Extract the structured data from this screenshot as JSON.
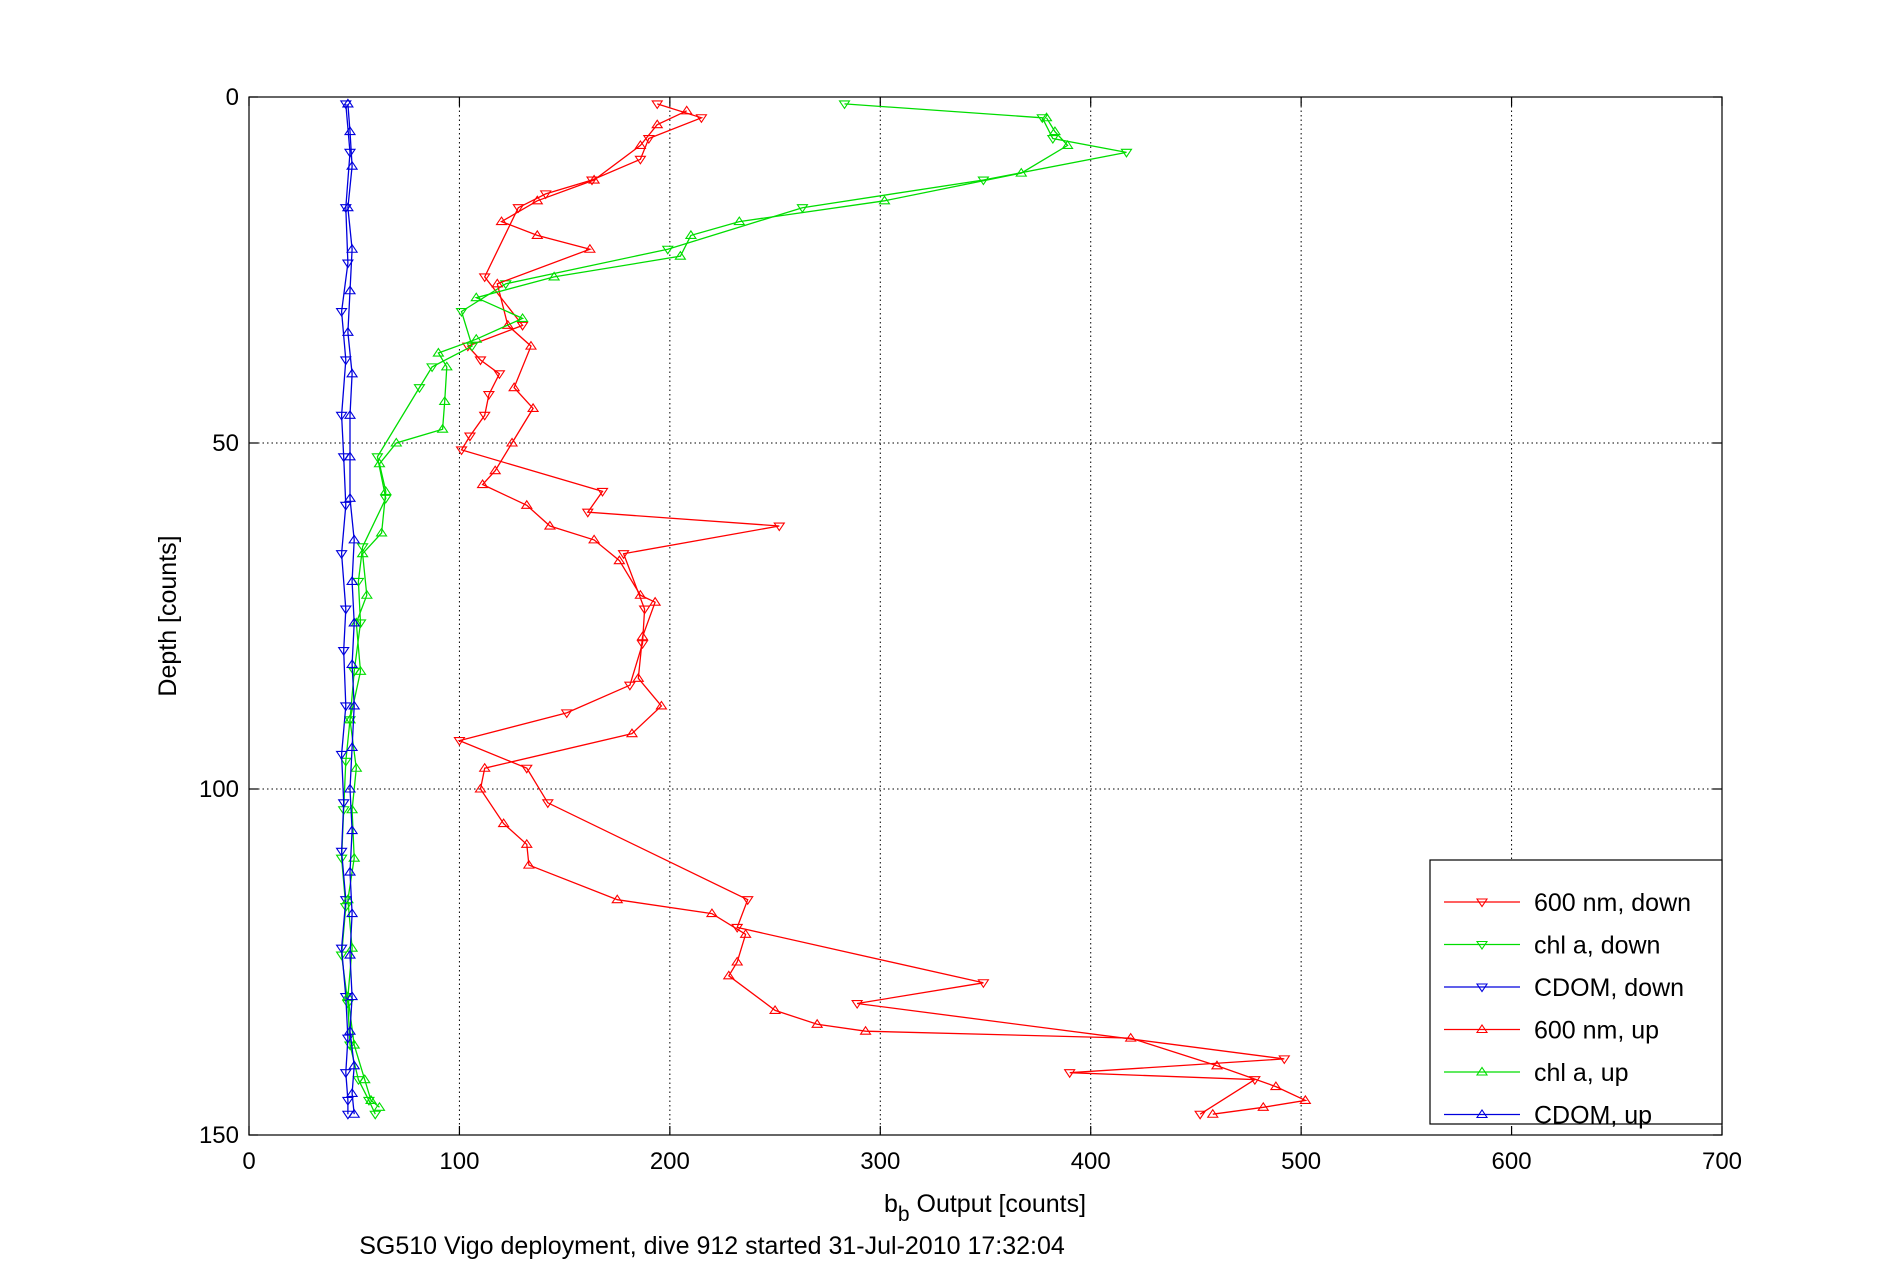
{
  "chart_data": {
    "type": "line",
    "xlabel": {
      "main": "b",
      "sub": "b",
      "rest": " Output [counts]"
    },
    "ylabel": "Depth [counts]",
    "caption": "SG510 Vigo deployment, dive 912 started 31-Jul-2010 17:32:04",
    "xlim": [
      0,
      700
    ],
    "ylim": [
      0,
      150
    ],
    "y_reversed": true,
    "xticks": [
      0,
      100,
      200,
      300,
      400,
      500,
      600,
      700
    ],
    "yticks": [
      0,
      50,
      100,
      150
    ],
    "grid": true,
    "legend_position": "bottom-right",
    "series": [
      {
        "name": "600 nm, down",
        "color": "#ff0000",
        "marker": "triangle-down",
        "points": [
          [
            194,
            1
          ],
          [
            215,
            3
          ],
          [
            190,
            6
          ],
          [
            186,
            9
          ],
          [
            163,
            12
          ],
          [
            141,
            14
          ],
          [
            128,
            16
          ],
          [
            112,
            26
          ],
          [
            130,
            33
          ],
          [
            104,
            36
          ],
          [
            110,
            38
          ],
          [
            119,
            40
          ],
          [
            114,
            43
          ],
          [
            112,
            46
          ],
          [
            105,
            49
          ],
          [
            101,
            51
          ],
          [
            168,
            57
          ],
          [
            161,
            60
          ],
          [
            252,
            62
          ],
          [
            178,
            66
          ],
          [
            188,
            74
          ],
          [
            187,
            79
          ],
          [
            181,
            85
          ],
          [
            151,
            89
          ],
          [
            100,
            93
          ],
          [
            132,
            97
          ],
          [
            142,
            102
          ],
          [
            237,
            116
          ],
          [
            232,
            120
          ],
          [
            349,
            128
          ],
          [
            289,
            131
          ],
          [
            492,
            139
          ],
          [
            390,
            141
          ],
          [
            478,
            142
          ],
          [
            452,
            147
          ]
        ]
      },
      {
        "name": "chl a, down",
        "color": "#00dd00",
        "marker": "triangle-down",
        "points": [
          [
            283,
            1
          ],
          [
            377,
            3
          ],
          [
            382,
            6
          ],
          [
            417,
            8
          ],
          [
            349,
            12
          ],
          [
            263,
            16
          ],
          [
            199,
            22
          ],
          [
            122,
            27
          ],
          [
            101,
            31
          ],
          [
            106,
            36
          ],
          [
            87,
            39
          ],
          [
            81,
            42
          ],
          [
            61,
            52
          ],
          [
            65,
            58
          ],
          [
            54,
            65
          ],
          [
            52,
            70
          ],
          [
            53,
            76
          ],
          [
            50,
            83
          ],
          [
            48,
            90
          ],
          [
            46,
            96
          ],
          [
            45,
            103
          ],
          [
            44,
            110
          ],
          [
            46,
            117
          ],
          [
            44,
            124
          ],
          [
            47,
            131
          ],
          [
            48,
            137
          ],
          [
            52,
            142
          ],
          [
            57,
            145
          ],
          [
            60,
            147
          ]
        ]
      },
      {
        "name": "CDOM, down",
        "color": "#0000dd",
        "marker": "triangle-down",
        "points": [
          [
            46,
            1
          ],
          [
            48,
            8
          ],
          [
            46,
            16
          ],
          [
            47,
            24
          ],
          [
            44,
            31
          ],
          [
            46,
            38
          ],
          [
            44,
            46
          ],
          [
            45,
            52
          ],
          [
            46,
            59
          ],
          [
            44,
            66
          ],
          [
            46,
            74
          ],
          [
            45,
            80
          ],
          [
            46,
            88
          ],
          [
            44,
            95
          ],
          [
            45,
            102
          ],
          [
            44,
            109
          ],
          [
            46,
            116
          ],
          [
            44,
            123
          ],
          [
            46,
            130
          ],
          [
            47,
            136
          ],
          [
            46,
            141
          ],
          [
            47,
            145
          ],
          [
            47,
            147
          ]
        ]
      },
      {
        "name": "600 nm, up",
        "color": "#ff0000",
        "marker": "triangle-up",
        "points": [
          [
            458,
            147
          ],
          [
            482,
            146
          ],
          [
            502,
            145
          ],
          [
            488,
            143
          ],
          [
            460,
            140
          ],
          [
            419,
            136
          ],
          [
            293,
            135
          ],
          [
            270,
            134
          ],
          [
            250,
            132
          ],
          [
            228,
            127
          ],
          [
            232,
            125
          ],
          [
            236,
            121
          ],
          [
            220,
            118
          ],
          [
            175,
            116
          ],
          [
            133,
            111
          ],
          [
            132,
            108
          ],
          [
            121,
            105
          ],
          [
            110,
            100
          ],
          [
            112,
            97
          ],
          [
            182,
            92
          ],
          [
            196,
            88
          ],
          [
            185,
            84
          ],
          [
            187,
            78
          ],
          [
            193,
            73
          ],
          [
            186,
            72
          ],
          [
            176,
            67
          ],
          [
            164,
            64
          ],
          [
            143,
            62
          ],
          [
            132,
            59
          ],
          [
            111,
            56
          ],
          [
            117,
            54
          ],
          [
            125,
            50
          ],
          [
            135,
            45
          ],
          [
            126,
            42
          ],
          [
            134,
            36
          ],
          [
            123,
            33
          ],
          [
            118,
            27
          ],
          [
            162,
            22
          ],
          [
            137,
            20
          ],
          [
            120,
            18
          ],
          [
            137,
            15
          ],
          [
            164,
            12
          ],
          [
            186,
            7
          ],
          [
            194,
            4
          ],
          [
            208,
            2
          ]
        ]
      },
      {
        "name": "chl a, up",
        "color": "#00dd00",
        "marker": "triangle-up",
        "points": [
          [
            62,
            146
          ],
          [
            58,
            145
          ],
          [
            55,
            142
          ],
          [
            50,
            137
          ],
          [
            47,
            130
          ],
          [
            49,
            123
          ],
          [
            47,
            116
          ],
          [
            50,
            110
          ],
          [
            49,
            103
          ],
          [
            51,
            97
          ],
          [
            48,
            90
          ],
          [
            53,
            83
          ],
          [
            51,
            76
          ],
          [
            56,
            72
          ],
          [
            54,
            66
          ],
          [
            63,
            63
          ],
          [
            65,
            57
          ],
          [
            62,
            53
          ],
          [
            70,
            50
          ],
          [
            92,
            48
          ],
          [
            93,
            44
          ],
          [
            94,
            39
          ],
          [
            90,
            37
          ],
          [
            108,
            35
          ],
          [
            130,
            32
          ],
          [
            108,
            29
          ],
          [
            145,
            26
          ],
          [
            205,
            23
          ],
          [
            210,
            20
          ],
          [
            233,
            18
          ],
          [
            302,
            15
          ],
          [
            367,
            11
          ],
          [
            389,
            7
          ],
          [
            383,
            5
          ],
          [
            379,
            3
          ]
        ]
      },
      {
        "name": "CDOM, up",
        "color": "#0000dd",
        "marker": "triangle-up",
        "points": [
          [
            50,
            147
          ],
          [
            49,
            144
          ],
          [
            50,
            140
          ],
          [
            48,
            135
          ],
          [
            49,
            130
          ],
          [
            48,
            124
          ],
          [
            49,
            118
          ],
          [
            48,
            112
          ],
          [
            49,
            106
          ],
          [
            48,
            100
          ],
          [
            49,
            94
          ],
          [
            50,
            88
          ],
          [
            49,
            82
          ],
          [
            50,
            76
          ],
          [
            49,
            70
          ],
          [
            50,
            64
          ],
          [
            48,
            58
          ],
          [
            48,
            52
          ],
          [
            48,
            46
          ],
          [
            49,
            40
          ],
          [
            47,
            34
          ],
          [
            48,
            28
          ],
          [
            49,
            22
          ],
          [
            47,
            16
          ],
          [
            49,
            10
          ],
          [
            48,
            5
          ],
          [
            47,
            1
          ]
        ]
      }
    ]
  }
}
